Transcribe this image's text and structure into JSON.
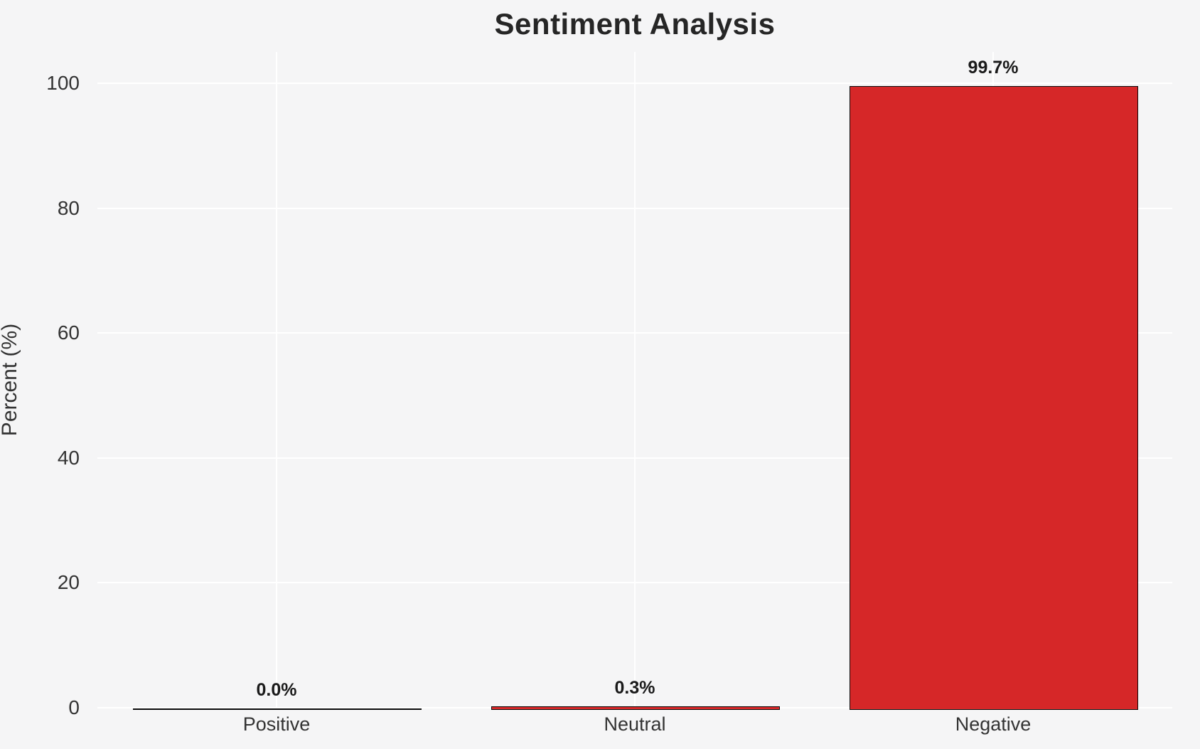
{
  "chart_data": {
    "type": "bar",
    "title": "Sentiment Analysis",
    "xlabel": "",
    "ylabel": "Percent (%)",
    "categories": [
      "Positive",
      "Neutral",
      "Negative"
    ],
    "values": [
      0.0,
      0.3,
      99.7
    ],
    "value_labels": [
      "0.0%",
      "0.3%",
      "99.7%"
    ],
    "yticks": [
      0,
      20,
      40,
      60,
      80,
      100
    ],
    "ytick_labels": [
      "0",
      "20",
      "40",
      "60",
      "80",
      "100"
    ],
    "ylim": [
      0,
      105
    ],
    "grid": true,
    "legend": null,
    "bar_width_fraction": 0.8,
    "style": {
      "background": "#f5f5f6",
      "grid_color": "#ffffff",
      "bar_fill_color": "#d62728",
      "bar_edge_color": "#0a0a0a",
      "title_color": "#262626",
      "tick_color": "#333333",
      "value_label_color": "#1a1a1a"
    }
  }
}
